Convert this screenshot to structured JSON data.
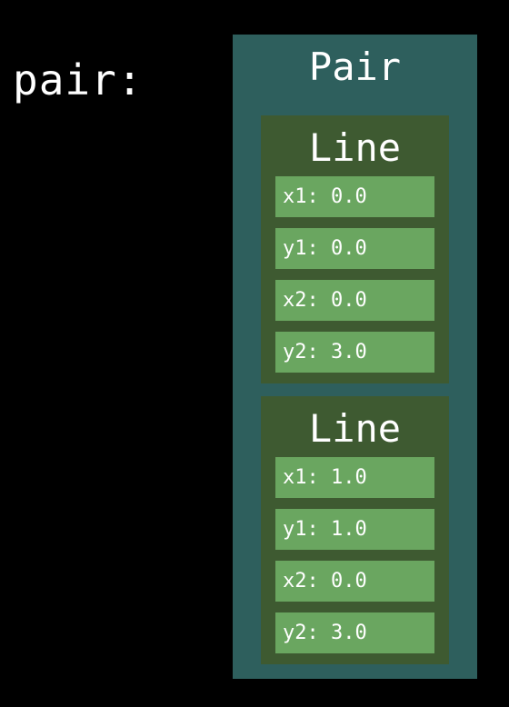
{
  "variable_label": "pair:",
  "pair": {
    "title": "Pair",
    "lines": [
      {
        "title": "Line",
        "fields": [
          "x1: 0.0",
          "y1: 0.0",
          "x2: 0.0",
          "y2: 3.0"
        ]
      },
      {
        "title": "Line",
        "fields": [
          "x1: 1.0",
          "y1: 1.0",
          "x2: 0.0",
          "y2: 3.0"
        ]
      }
    ]
  },
  "colors": {
    "background": "#000000",
    "pair_box": "#2e5f5d",
    "line_box": "#3e5a31",
    "field_box": "#6aa660",
    "text": "#ffffff"
  }
}
